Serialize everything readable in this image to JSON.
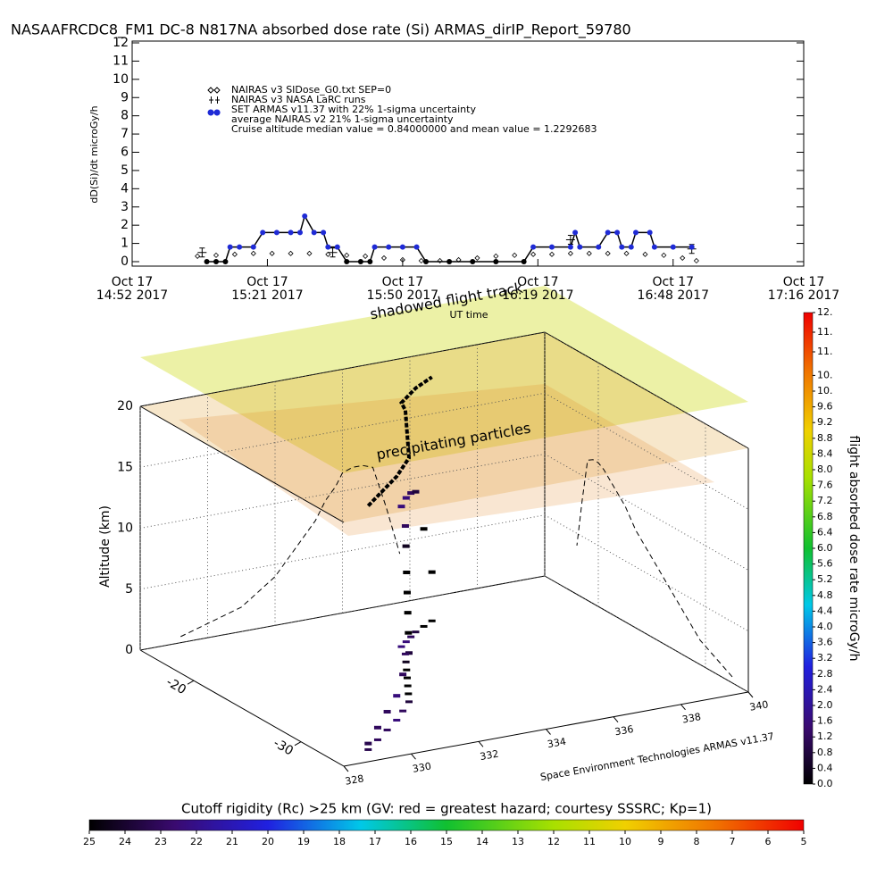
{
  "title": "NASAAFRCDC8_FM1 DC-8   N817NA absorbed dose rate (Si) ARMAS_dirIP_Report_59780",
  "chart_data": [
    {
      "type": "line",
      "ylabel": "dD(Si)/dt microGy/h",
      "xlabel": "UT time",
      "xlim": [
        "14:52",
        "17:16"
      ],
      "xticks": [
        {
          "value": "14:52",
          "label": [
            "Oct 17",
            "14:52 2017"
          ]
        },
        {
          "value": "15:21",
          "label": [
            "Oct 17",
            "15:21 2017"
          ]
        },
        {
          "value": "15:50",
          "label": [
            "Oct 17",
            "15:50 2017"
          ]
        },
        {
          "value": "16:19",
          "label": [
            "Oct 17",
            "16:19 2017"
          ]
        },
        {
          "value": "16:48",
          "label": [
            "Oct 17",
            "16:48 2017"
          ]
        },
        {
          "value": "17:16",
          "label": [
            "Oct 17",
            "17:16 2017"
          ]
        }
      ],
      "ylim": [
        0,
        12
      ],
      "yticks": [
        0,
        1,
        2,
        3,
        4,
        5,
        6,
        7,
        8,
        9,
        10,
        11,
        12
      ],
      "series": [
        {
          "name": "NAIRAS v3 SIDose_G0.txt SEP=0",
          "color": "#000000",
          "marker": "diamond",
          "x": [
            "15:06",
            "15:10",
            "15:14",
            "15:18",
            "15:22",
            "15:26",
            "15:30",
            "15:34",
            "15:38",
            "15:42",
            "15:46",
            "15:50",
            "15:54",
            "15:58",
            "16:02",
            "16:06",
            "16:10",
            "16:14",
            "16:18",
            "16:22",
            "16:26",
            "16:30",
            "16:34",
            "16:38",
            "16:42",
            "16:46",
            "16:50",
            "16:53"
          ],
          "values": [
            0.3,
            0.35,
            0.4,
            0.45,
            0.45,
            0.45,
            0.45,
            0.4,
            0.35,
            0.3,
            0.2,
            0.1,
            0.05,
            0.05,
            0.1,
            0.2,
            0.3,
            0.35,
            0.4,
            0.4,
            0.45,
            0.45,
            0.45,
            0.45,
            0.4,
            0.35,
            0.2,
            0.05
          ]
        },
        {
          "name": "NAIRAS v3 NASA LaRC runs",
          "color": "#000000",
          "marker": "plus",
          "x": [
            "15:07",
            "15:35",
            "16:26",
            "16:52"
          ],
          "values": [
            0.5,
            0.5,
            1.2,
            0.7
          ]
        },
        {
          "name": "SET ARMAS v11.37 with 22% 1-sigma uncertainty",
          "color": "#1f2bd6",
          "marker": "dot",
          "x": [
            "15:08",
            "15:10",
            "15:12",
            "15:13",
            "15:15",
            "15:18",
            "15:20",
            "15:23",
            "15:26",
            "15:28",
            "15:29",
            "15:31",
            "15:33",
            "15:34",
            "15:36",
            "15:38",
            "15:41",
            "15:43",
            "15:44",
            "15:47",
            "15:50",
            "15:53",
            "15:55",
            "16:00",
            "16:05",
            "16:10",
            "16:16",
            "16:18",
            "16:22",
            "16:26",
            "16:27",
            "16:28",
            "16:32",
            "16:34",
            "16:36",
            "16:37",
            "16:39",
            "16:40",
            "16:43",
            "16:44",
            "16:48",
            "16:52"
          ],
          "values": [
            0,
            0,
            0,
            0.8,
            0.8,
            0.8,
            1.6,
            1.6,
            1.6,
            1.6,
            2.5,
            1.6,
            1.6,
            0.8,
            0.8,
            0,
            0,
            0,
            0.8,
            0.8,
            0.8,
            0.8,
            0,
            0,
            0,
            0,
            0,
            0.8,
            0.8,
            0.8,
            1.6,
            0.8,
            0.8,
            1.6,
            1.6,
            0.8,
            0.8,
            1.6,
            1.6,
            0.8,
            0.8,
            0.8
          ]
        }
      ],
      "legend_notes": [
        "average NAIRAS v2 21% 1-sigma uncertainty",
        "Cruise altitude median value = 0.84000000 and mean value = 1.2292683"
      ]
    },
    {
      "type": "scatter3d",
      "zlabel": "Altitude (km)",
      "annotations": [
        "shadowed flight track",
        "precipitating particles"
      ],
      "credit": "Space Environment Technologies ARMAS v11.37",
      "xlim": [
        328,
        340
      ],
      "xticks": [
        328,
        330,
        332,
        334,
        336,
        338,
        340
      ],
      "ylim": [
        -15,
        -34
      ],
      "yticks": [
        -20,
        -30
      ],
      "zlim": [
        0,
        20
      ],
      "zticks": [
        0,
        5,
        10,
        15,
        20
      ],
      "x": [
        329.2,
        329.8,
        330.4,
        331.0,
        331.5,
        332.0,
        332.3,
        332.6,
        332.9,
        333.2,
        333.5,
        333.8,
        334.0,
        334.3,
        334.6,
        334.9,
        335.3,
        335.7
      ],
      "y": [
        -32.5,
        -31.5,
        -30.5,
        -29.5,
        -28.5,
        -27.5,
        -26.5,
        -25.5,
        -24.5,
        -23.5,
        -22.5,
        -21.5,
        -20.5,
        -20.0,
        -19.5,
        -19.0,
        -18.5,
        -18.0
      ],
      "z": [
        0.5,
        1.0,
        1.5,
        2.0,
        3.0,
        4.0,
        5.0,
        6.0,
        7.0,
        8.0,
        9.5,
        10.5,
        11.5,
        11.8,
        11.8,
        11.5,
        8.0,
        4.0
      ],
      "values": [
        1.0,
        1.2,
        1.2,
        1.6,
        1.2,
        0.8,
        0.0,
        0.0,
        0.0,
        0.0,
        0.4,
        1.2,
        1.6,
        1.6,
        1.2,
        0.8,
        0.0,
        0.0
      ],
      "colorbar": {
        "label": "flight absorbed dose rate microGy/h",
        "lim": [
          0,
          12
        ],
        "ticks": [
          {
            "value": 0,
            "label": "0.0"
          },
          0.4,
          0.8,
          1.2,
          1.6,
          {
            "value": 2,
            "label": "2.0"
          },
          2.4,
          2.8,
          3.2,
          3.6,
          {
            "value": 4,
            "label": "4.0"
          },
          4.4,
          4.8,
          5.2,
          5.6,
          {
            "value": 6,
            "label": "6.0"
          },
          6.4,
          6.8,
          7.2,
          7.6,
          {
            "value": 8,
            "label": "8.0"
          },
          8.4,
          8.8,
          9.2,
          9.6,
          {
            "value": 10,
            "label": "10."
          },
          {
            "value": 10.4,
            "label": "10."
          },
          {
            "value": 11,
            "label": "11."
          },
          {
            "value": 11.5,
            "label": "11."
          },
          {
            "value": 12,
            "label": "12."
          }
        ]
      }
    },
    {
      "type": "colorbar",
      "title": "Cutoff rigidity (Rc) >25 km (GV: red = greatest hazard; courtesy SSSRC; Kp=1)",
      "xlim": [
        25,
        5
      ],
      "xticks": [
        25,
        24,
        23,
        22,
        21,
        20,
        19,
        18,
        17,
        16,
        15,
        14,
        13,
        12,
        11,
        10,
        9,
        8,
        7,
        6,
        5
      ]
    }
  ]
}
